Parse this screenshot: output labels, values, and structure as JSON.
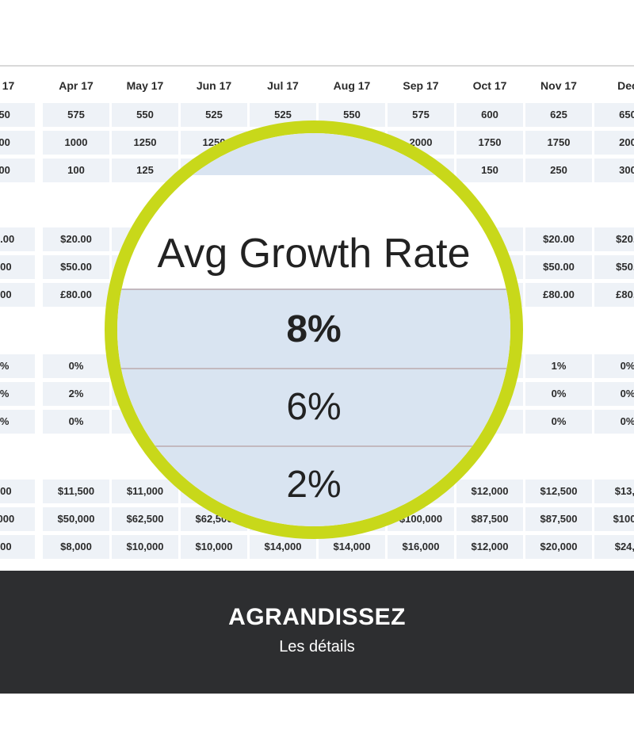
{
  "table": {
    "months": [
      "ar 17",
      "Apr 17",
      "May 17",
      "Jun 17",
      "Jul 17",
      "Aug 17",
      "Sep 17",
      "Oct 17",
      "Nov 17",
      "Dec"
    ],
    "rows": [
      [
        "550",
        "575",
        "550",
        "525",
        "525",
        "550",
        "575",
        "600",
        "625",
        "650"
      ],
      [
        "000",
        "1000",
        "1250",
        "1250",
        "",
        "",
        "2000",
        "1750",
        "1750",
        "200"
      ],
      [
        "100",
        "100",
        "125",
        "",
        "",
        "",
        "",
        "150",
        "250",
        "300"
      ],
      null,
      [
        "20.00",
        "$20.00",
        "",
        "",
        "",
        "",
        "",
        "0",
        "$20.00",
        "$20.("
      ],
      [
        "0.00",
        "$50.00",
        "",
        "",
        "",
        "",
        "",
        "",
        "$50.00",
        "$50.("
      ],
      [
        "0.00",
        "£80.00",
        "",
        "",
        "",
        "",
        "",
        "",
        "£80.00",
        "£80.("
      ],
      null,
      [
        "0%",
        "0%",
        "",
        "",
        "",
        "",
        "",
        "",
        "1%",
        "0%"
      ],
      [
        "0%",
        "2%",
        "",
        "",
        "",
        "",
        "",
        "",
        "0%",
        "0%"
      ],
      [
        "2%",
        "0%",
        "",
        "",
        "",
        "",
        "",
        "",
        "0%",
        "0%"
      ],
      null,
      [
        ",000",
        "$11,500",
        "$11,000",
        "",
        "",
        "",
        "",
        "$12,000",
        "$12,500",
        "$13,0"
      ],
      [
        "0,000",
        "$50,000",
        "$62,500",
        "$62,500",
        "",
        "",
        "$100,000",
        "$87,500",
        "$87,500",
        "$100,("
      ],
      [
        ",000",
        "$8,000",
        "$10,000",
        "$10,000",
        "$14,000",
        "$14,000",
        "$16,000",
        "$12,000",
        "$20,000",
        "$24,0"
      ]
    ]
  },
  "magnifier": {
    "heading": "Avg Growth Rate",
    "values": [
      "8%",
      "6%",
      "2%"
    ],
    "ring_color": "#c8d81a",
    "band_color": "#d9e4f1"
  },
  "banner": {
    "title": "AGRANDISSEZ",
    "subtitle": "Les détails",
    "background": "#2d2e30"
  }
}
